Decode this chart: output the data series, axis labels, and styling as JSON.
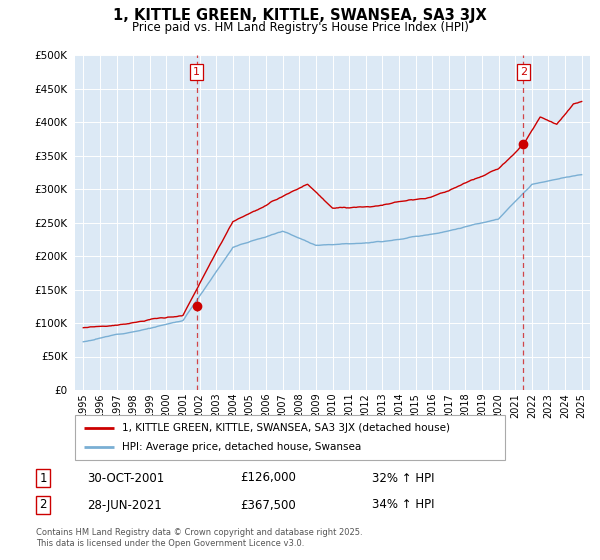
{
  "title": "1, KITTLE GREEN, KITTLE, SWANSEA, SA3 3JX",
  "subtitle": "Price paid vs. HM Land Registry's House Price Index (HPI)",
  "legend_entry1": "1, KITTLE GREEN, KITTLE, SWANSEA, SA3 3JX (detached house)",
  "legend_entry2": "HPI: Average price, detached house, Swansea",
  "footnote": "Contains HM Land Registry data © Crown copyright and database right 2025.\nThis data is licensed under the Open Government Licence v3.0.",
  "transaction1_label": "1",
  "transaction1_date": "30-OCT-2001",
  "transaction1_price": "£126,000",
  "transaction1_hpi": "32% ↑ HPI",
  "transaction2_label": "2",
  "transaction2_date": "28-JUN-2021",
  "transaction2_price": "£367,500",
  "transaction2_hpi": "34% ↑ HPI",
  "vline1_x": 2001.83,
  "vline2_x": 2021.48,
  "point1_x": 2001.83,
  "point1_y": 126000,
  "point2_x": 2021.48,
  "point2_y": 367500,
  "ylim": [
    0,
    500000
  ],
  "xlim": [
    1994.5,
    2025.5
  ],
  "yticks": [
    0,
    50000,
    100000,
    150000,
    200000,
    250000,
    300000,
    350000,
    400000,
    450000,
    500000
  ],
  "xticks": [
    1995,
    1996,
    1997,
    1998,
    1999,
    2000,
    2001,
    2002,
    2003,
    2004,
    2005,
    2006,
    2007,
    2008,
    2009,
    2010,
    2011,
    2012,
    2013,
    2014,
    2015,
    2016,
    2017,
    2018,
    2019,
    2020,
    2021,
    2022,
    2023,
    2024,
    2025
  ],
  "line_color_red": "#cc0000",
  "line_color_blue": "#7aafd4",
  "vline_color": "#cc0000",
  "bg_color": "#dce9f5",
  "grid_color": "#ffffff",
  "outer_bg": "#ffffff"
}
